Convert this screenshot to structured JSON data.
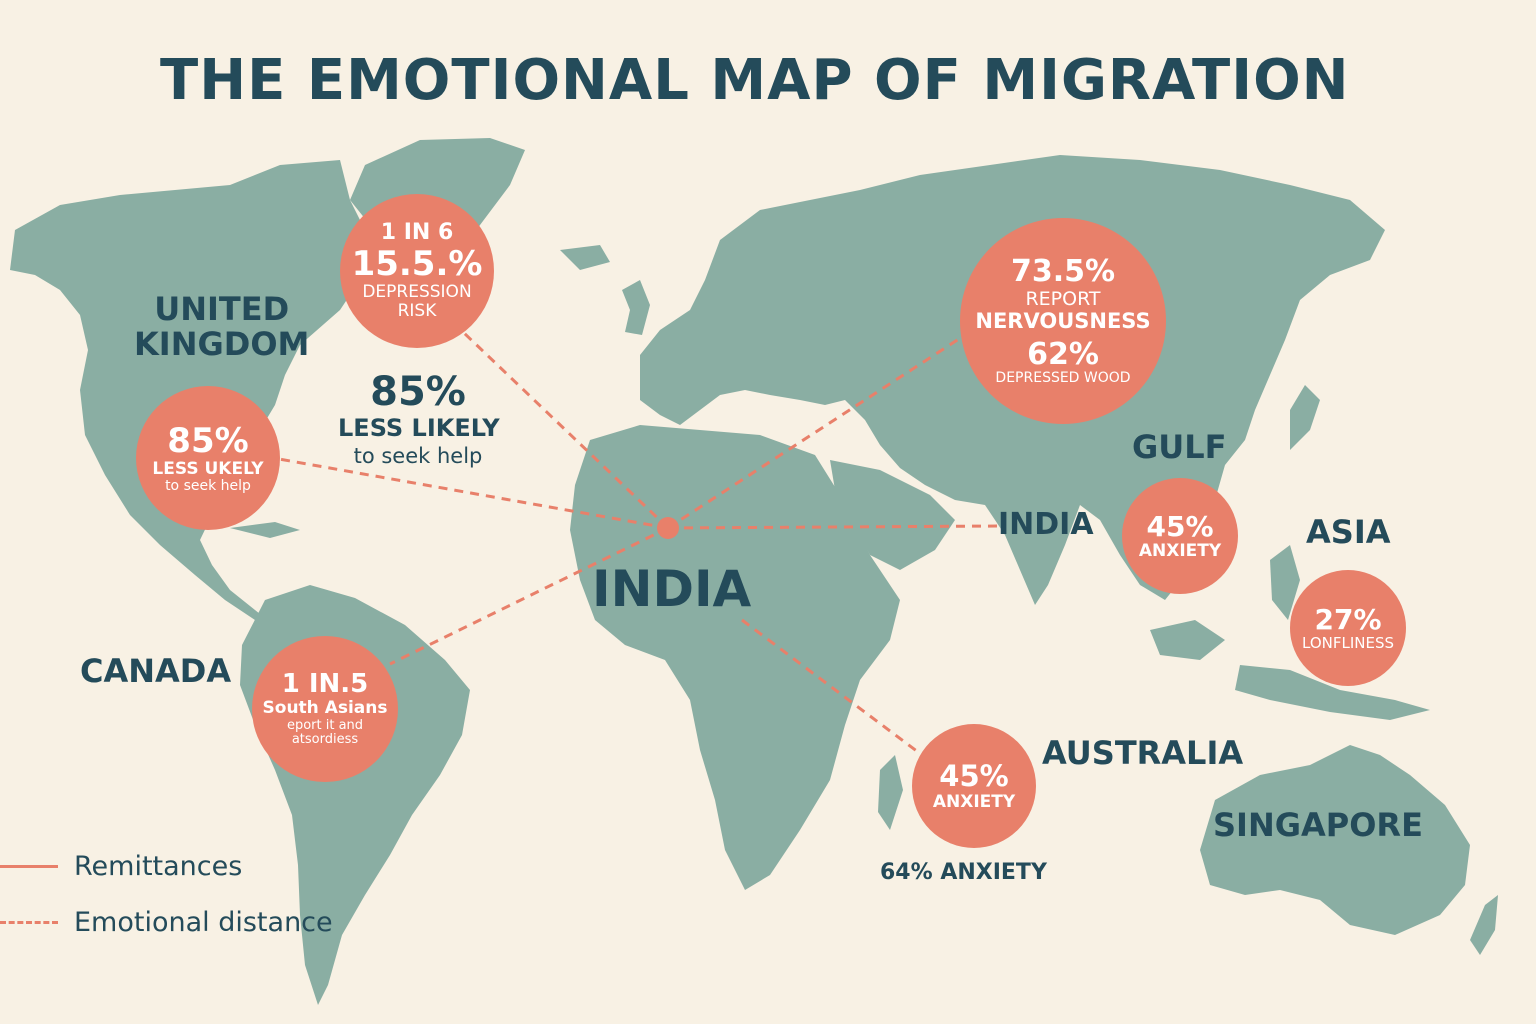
{
  "title": "THE EMOTIONAL MAP OF MIGRATION",
  "colors": {
    "background": "#f8f1e4",
    "land": "#8aaea3",
    "bubble": "#e8806a",
    "text_dark": "#244b5a",
    "line": "#e8806a"
  },
  "region_labels": {
    "united_kingdom": "UNITED\nKINGDOM",
    "canada": "CANADA",
    "india_center": "INDIA",
    "india_east": "INDIA",
    "gulf": "GULF",
    "asia": "ASIA",
    "australia": "AUSTRALIA",
    "singapore": "SINGAPORE"
  },
  "bubbles": {
    "north_atlantic": {
      "line1": "1 IN 6",
      "line2": "15.5.%",
      "line3": "DEPRESSION",
      "line4": "RISK"
    },
    "usa": {
      "line1": "85%",
      "line2": "LESS UKELY",
      "line3": "to seek help"
    },
    "russia": {
      "line1": "73.5%",
      "line2": "REPORT",
      "line3": "NERVOUSNESS",
      "line4": "62%",
      "line5": "DEPRESSED WOOD"
    },
    "gulf": {
      "line1": "45%",
      "line2": "ANXIETY"
    },
    "asia": {
      "line1": "27%",
      "line2": "LONFLINESS"
    },
    "south_america": {
      "line1": "1 IN.5",
      "line2": "South Asians",
      "line3": "eport it and",
      "line4": "atsordiess"
    },
    "indian_ocean": {
      "line1": "45%",
      "line2": "ANXIETY"
    }
  },
  "floating_stats": {
    "atlantic": {
      "line1": "85%",
      "line2": "LESS LIKELY",
      "line3": "to seek help"
    },
    "indian_ocean": {
      "line1": "64% ANXIETY"
    }
  },
  "legend": {
    "solid_label": "Remittances",
    "dashed_label": "Emotional distance"
  }
}
